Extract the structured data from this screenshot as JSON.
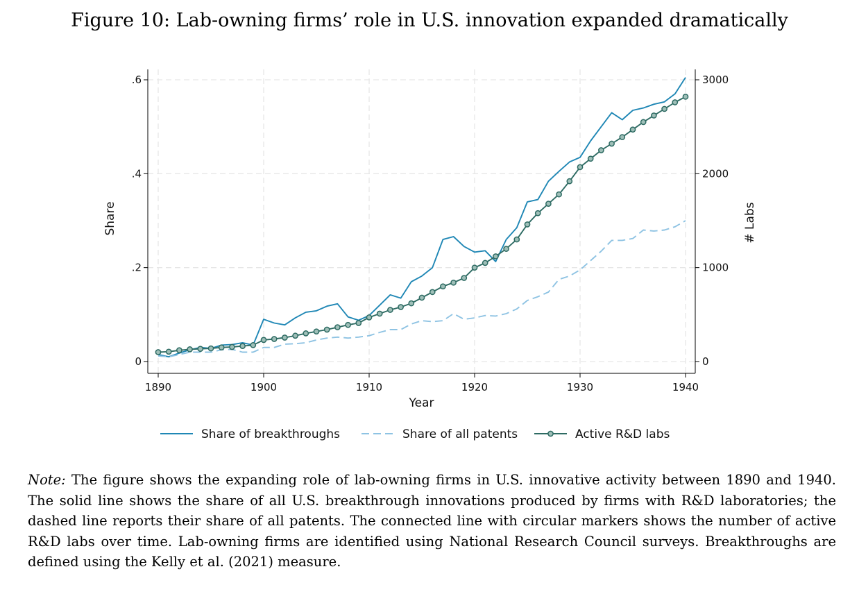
{
  "figure": {
    "title": "Figure 10: Lab-owning firms’ role in U.S. innovation expanded dramatically"
  },
  "note": {
    "label": "Note:",
    "text": "The figure shows the expanding role of lab-owning firms in U.S. innovative activity between 1890 and 1940. The solid line shows the share of all U.S. breakthrough innovations produced by firms with R&D laboratories; the dashed line reports their share of all patents. The connected line with circular markers shows the number of active R&D labs over time. Lab-owning firms are identified using National Research Council surveys. Breakthroughs are defined using the Kelly et al. (2021) measure."
  },
  "colors": {
    "breakthroughs": "#1f87b5",
    "patents": "#8ec3e3",
    "labs": "#2e6b63",
    "grid": "#e6e6e6"
  },
  "chart_data": {
    "type": "line",
    "title": "",
    "xlabel": "Year",
    "ylabel": "Share",
    "y2label": "# Labs",
    "xlim": [
      1890,
      1940
    ],
    "ylim": [
      0,
      0.6
    ],
    "y2lim": [
      0,
      3000
    ],
    "xticks": [
      1890,
      1900,
      1910,
      1920,
      1930,
      1940
    ],
    "xtick_labels": [
      "1890",
      "1900",
      "1910",
      "1920",
      "1930",
      "1940"
    ],
    "yticks": [
      0,
      0.2,
      0.4,
      0.6
    ],
    "ytick_labels": [
      "0",
      ".2",
      ".4",
      ".6"
    ],
    "y2ticks": [
      0,
      1000,
      2000,
      3000
    ],
    "y2tick_labels": [
      "0",
      "1000",
      "2000",
      "3000"
    ],
    "grid": true,
    "legend_position": "bottom",
    "x": [
      1890,
      1891,
      1892,
      1893,
      1894,
      1895,
      1896,
      1897,
      1898,
      1899,
      1900,
      1901,
      1902,
      1903,
      1904,
      1905,
      1906,
      1907,
      1908,
      1909,
      1910,
      1911,
      1912,
      1913,
      1914,
      1915,
      1916,
      1917,
      1918,
      1919,
      1920,
      1921,
      1922,
      1923,
      1924,
      1925,
      1926,
      1927,
      1928,
      1929,
      1930,
      1931,
      1932,
      1933,
      1934,
      1935,
      1936,
      1937,
      1938,
      1939,
      1940
    ],
    "series": [
      {
        "name": "Share of breakthroughs",
        "axis": "left",
        "style": "solid",
        "values": [
          0.015,
          0.01,
          0.018,
          0.025,
          0.03,
          0.028,
          0.035,
          0.036,
          0.04,
          0.035,
          0.09,
          0.082,
          0.078,
          0.093,
          0.105,
          0.108,
          0.118,
          0.123,
          0.095,
          0.088,
          0.098,
          0.12,
          0.142,
          0.135,
          0.17,
          0.182,
          0.2,
          0.26,
          0.266,
          0.245,
          0.233,
          0.236,
          0.213,
          0.26,
          0.285,
          0.34,
          0.345,
          0.384,
          0.405,
          0.425,
          0.435,
          0.47,
          0.5,
          0.53,
          0.515,
          0.535,
          0.54,
          0.548,
          0.553,
          0.57,
          0.605
        ]
      },
      {
        "name": "Share of all patents",
        "axis": "left",
        "style": "dashed",
        "values": [
          0.012,
          0.01,
          0.015,
          0.02,
          0.02,
          0.02,
          0.025,
          0.026,
          0.02,
          0.02,
          0.03,
          0.03,
          0.037,
          0.038,
          0.04,
          0.046,
          0.05,
          0.052,
          0.05,
          0.052,
          0.055,
          0.062,
          0.068,
          0.068,
          0.08,
          0.087,
          0.085,
          0.087,
          0.102,
          0.09,
          0.093,
          0.098,
          0.097,
          0.102,
          0.112,
          0.13,
          0.138,
          0.148,
          0.175,
          0.182,
          0.195,
          0.215,
          0.235,
          0.258,
          0.258,
          0.262,
          0.28,
          0.278,
          0.28,
          0.287,
          0.3
        ]
      },
      {
        "name": "Active R&D labs",
        "axis": "right",
        "style": "connected",
        "values": [
          100,
          105,
          120,
          130,
          135,
          140,
          150,
          155,
          165,
          175,
          230,
          240,
          255,
          275,
          300,
          320,
          340,
          365,
          390,
          410,
          470,
          510,
          550,
          580,
          620,
          680,
          740,
          800,
          840,
          890,
          1000,
          1050,
          1120,
          1200,
          1300,
          1460,
          1580,
          1680,
          1780,
          1920,
          2070,
          2160,
          2250,
          2320,
          2390,
          2470,
          2550,
          2620,
          2690,
          2760,
          2820
        ]
      }
    ]
  }
}
